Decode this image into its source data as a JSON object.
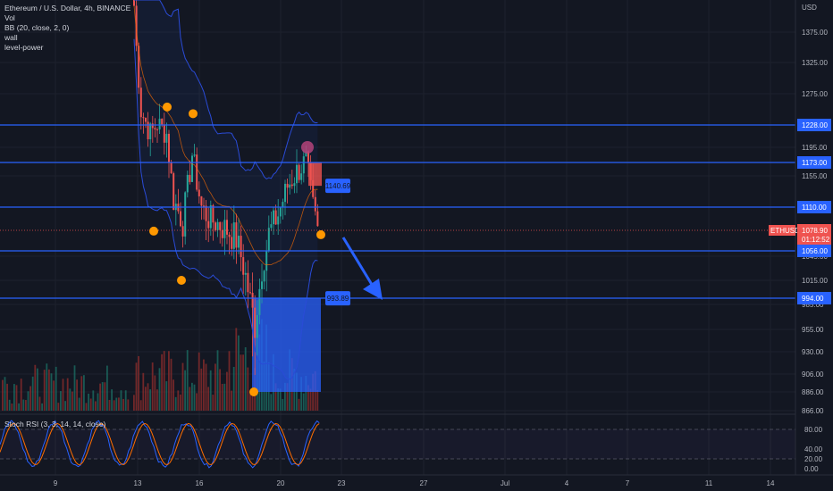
{
  "legend": {
    "symbol": "Ethereum / U.S. Dollar, 4h, BINANCE",
    "vol": "Vol",
    "bb": "BB (20, close, 2, 0)",
    "wall": "wall",
    "level_power": "level-power"
  },
  "rsi_legend": "Stoch RSI (3, 3, 14, 14, close)",
  "currency": "USD",
  "colors": {
    "background": "#131722",
    "up": "#26a69a",
    "down": "#ef5350",
    "level_line": "#2962ff",
    "bb_band": "#2a4bd7",
    "bb_basis": "#ff6d00",
    "marker": "#ff9800",
    "zone": "#2962ff",
    "stoch_k": "#2962ff",
    "stoch_d": "#ff6d00"
  },
  "chart_data": {
    "type": "candlestick",
    "ylim": [
      855,
      1405
    ],
    "y_ticks": [
      "1375.00",
      "1325.00",
      "1275.00",
      "1195.00",
      "1155.00",
      "1045.00",
      "1015.00",
      "985.00",
      "955.00",
      "930.00",
      "906.00",
      "886.00",
      "866.00"
    ],
    "x_ticks": [
      "9",
      "13",
      "16",
      "20",
      "23",
      "27",
      "Jul",
      "4",
      "7",
      "11",
      "14"
    ],
    "levels": [
      {
        "value": 1228,
        "label": "1228.00"
      },
      {
        "value": 1173,
        "label": "1173.00"
      },
      {
        "value": 1110,
        "label": "1110.00"
      },
      {
        "value": 1056,
        "label": "1056.00"
      },
      {
        "value": 994,
        "label": "994.00"
      }
    ],
    "last_price": {
      "symbol": "ETHUSD",
      "price": "1078.90",
      "countdown": "01:12:52"
    },
    "annotations": [
      {
        "text": "1140.69",
        "value": 1140.69
      },
      {
        "text": "993.89",
        "value": 993.89
      }
    ],
    "rsi_ticks": [
      "80.00",
      "40.00",
      "20.00",
      "0.00"
    ],
    "rsi_levels": [
      80,
      20
    ]
  }
}
